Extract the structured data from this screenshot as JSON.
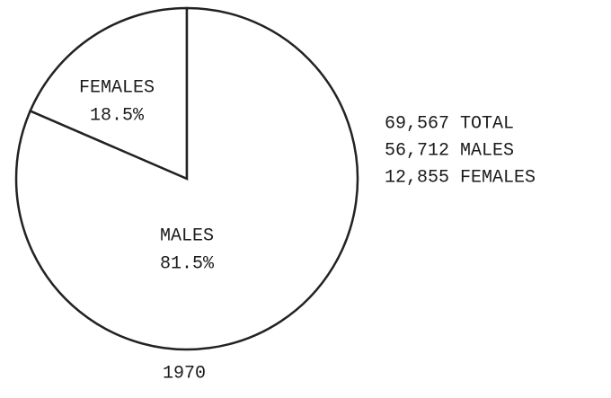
{
  "chart_data": {
    "type": "pie",
    "categories": [
      "FEMALES",
      "MALES"
    ],
    "values": [
      18.5,
      81.5
    ],
    "value_labels": [
      "18.5%",
      "81.5%"
    ],
    "colors": [
      "#ffffff",
      "#ffffff"
    ],
    "startangle": 90,
    "direction": "counterclockwise",
    "caption": "1970",
    "annotations": [
      "69,567 TOTAL",
      "56,712 MALES",
      "12,855 FEMALES"
    ]
  }
}
